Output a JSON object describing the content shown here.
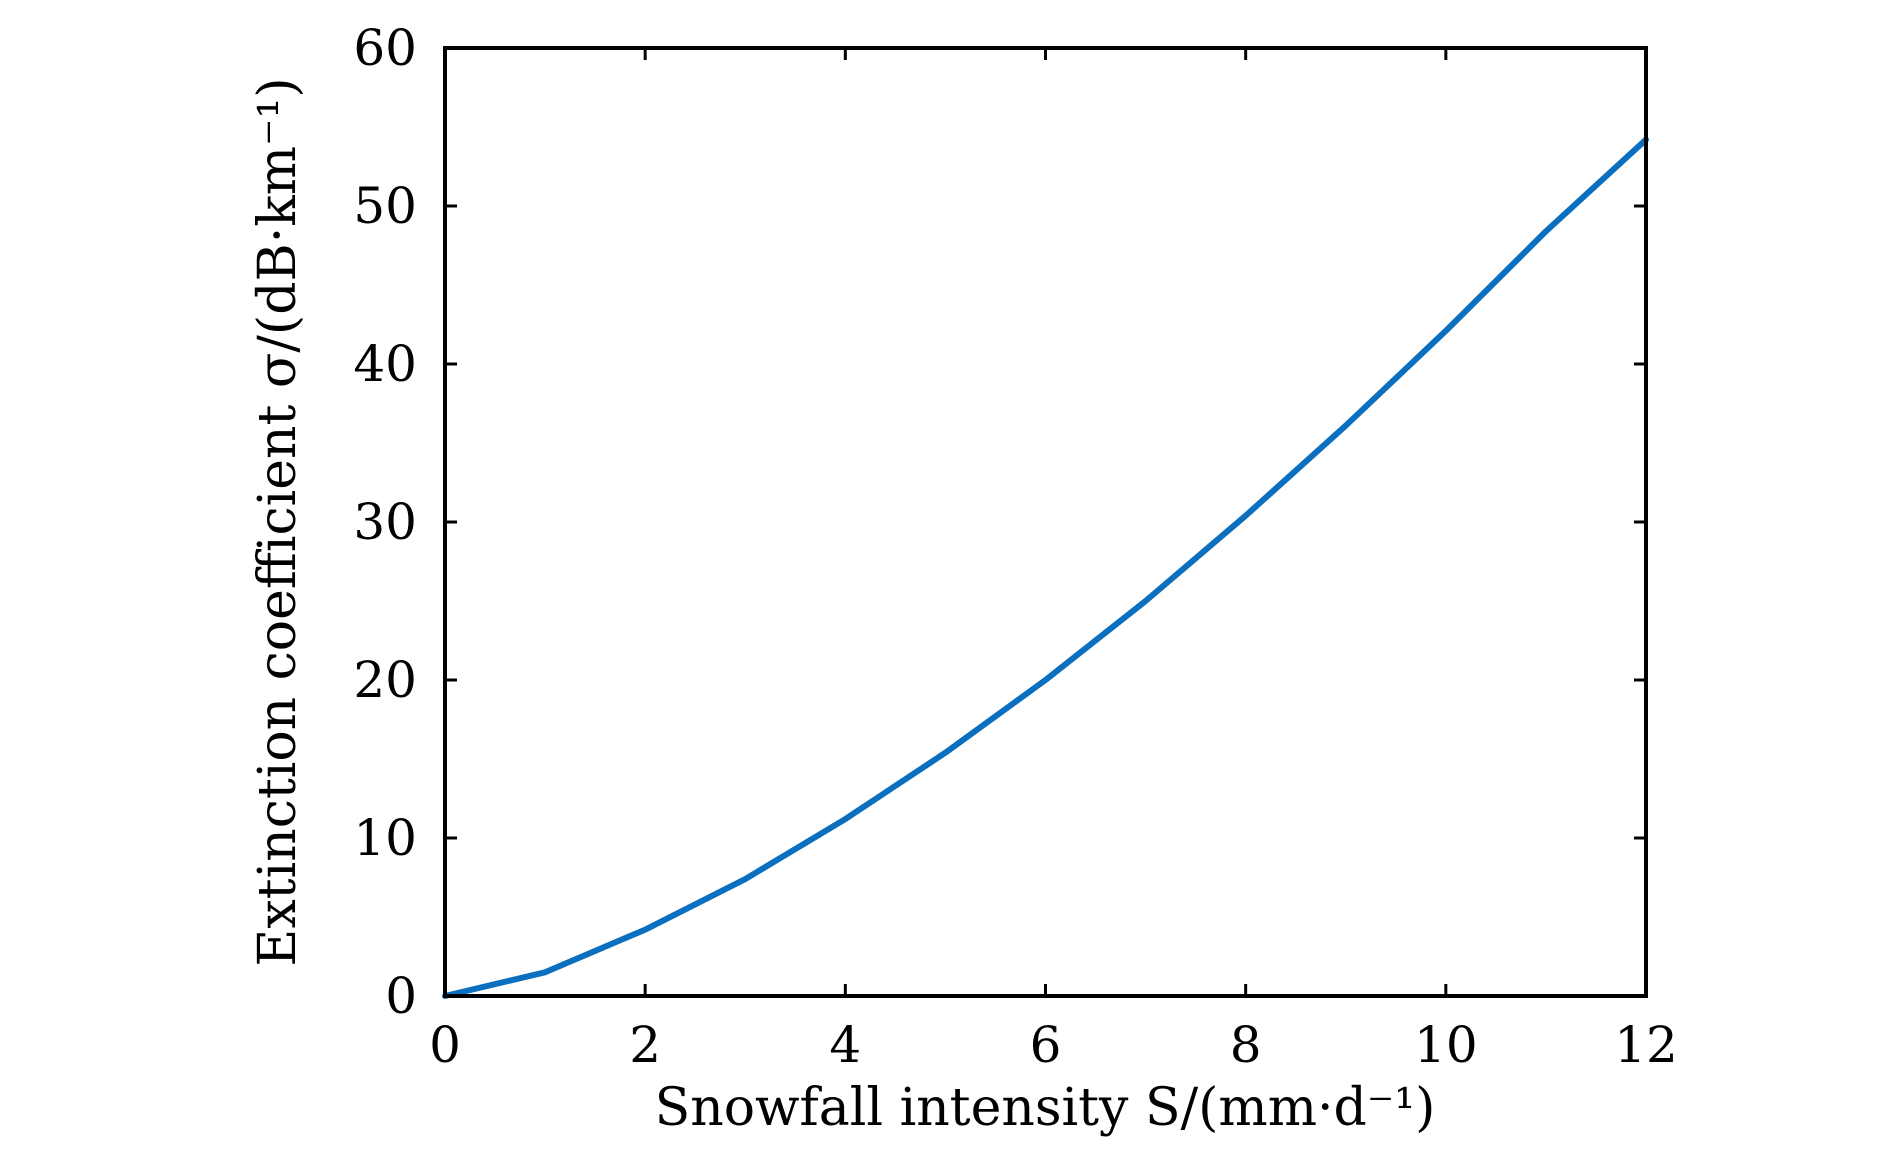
{
  "chart_data": {
    "type": "line",
    "xlabel": "Snowfall intensity S/(mm·d⁻¹)",
    "ylabel": "Extinction coefficient σ/(dB·km⁻¹)",
    "xlim": [
      0,
      12
    ],
    "ylim": [
      0,
      60
    ],
    "xticks": [
      "0",
      "2",
      "4",
      "6",
      "8",
      "10",
      "12"
    ],
    "yticks": [
      "0",
      "10",
      "20",
      "30",
      "40",
      "50",
      "60"
    ],
    "grid": false,
    "line_color": "#0b6fbf",
    "series": [
      {
        "x": [
          0,
          1,
          2,
          3,
          4,
          5,
          6,
          7,
          8,
          9,
          10,
          11,
          12
        ],
        "y": [
          0,
          1.5,
          4.2,
          7.4,
          11.2,
          15.4,
          20.0,
          25.0,
          30.4,
          36.1,
          42.1,
          48.4,
          54.2
        ]
      }
    ]
  }
}
